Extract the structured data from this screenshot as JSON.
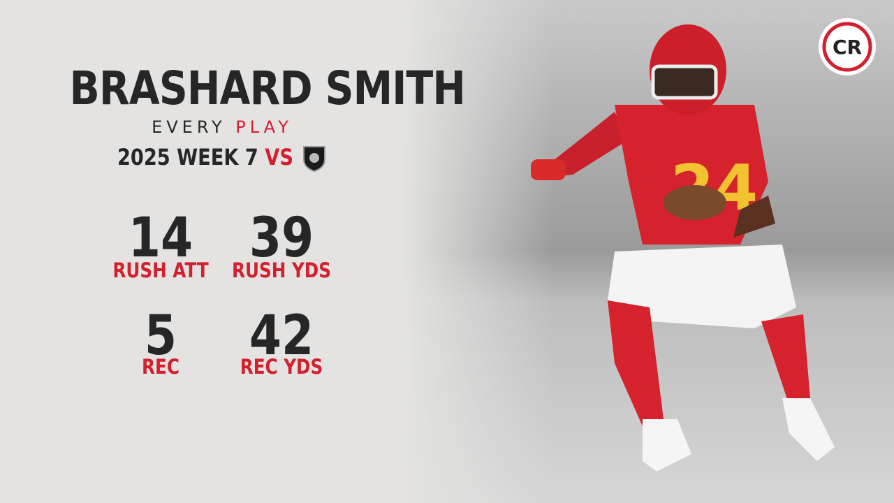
{
  "header": {
    "name": "BRASHARD SMITH",
    "subtitle_1": "EVERY",
    "subtitle_2": "PLAY",
    "game": "2025 WEEK 7",
    "vs": "VS"
  },
  "stats": [
    {
      "value": 14,
      "label": "RUSH ATT"
    },
    {
      "value": 39,
      "label": "RUSH YDS"
    },
    {
      "value": 5,
      "label": "REC"
    },
    {
      "value": 42,
      "label": "REC YDS"
    }
  ],
  "logo": {
    "text": "CR"
  }
}
